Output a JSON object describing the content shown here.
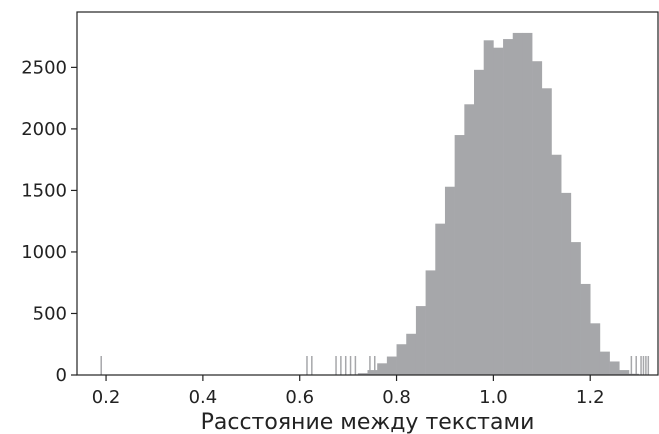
{
  "chart_data": {
    "type": "bar",
    "xlabel": "Расстояние между текстами",
    "ylabel": "",
    "xlim": [
      0.14,
      1.34
    ],
    "ylim": [
      0,
      2950
    ],
    "grid": false,
    "bar_color": "#a6a7aa",
    "rug_color": "#a6a7aa",
    "bin_width": 0.02,
    "x_ticks": [
      0.2,
      0.4,
      0.6,
      0.8,
      1.0,
      1.2
    ],
    "x_tick_labels": [
      "0.2",
      "0.4",
      "0.6",
      "0.8",
      "1.0",
      "1.2"
    ],
    "y_ticks": [
      0,
      500,
      1000,
      1500,
      2000,
      2500
    ],
    "y_tick_labels": [
      "0",
      "500",
      "1000",
      "1500",
      "2000",
      "2500"
    ],
    "bins": [
      {
        "x": 0.7,
        "value": 5
      },
      {
        "x": 0.72,
        "value": 15
      },
      {
        "x": 0.74,
        "value": 40
      },
      {
        "x": 0.76,
        "value": 95
      },
      {
        "x": 0.78,
        "value": 150
      },
      {
        "x": 0.8,
        "value": 250
      },
      {
        "x": 0.82,
        "value": 335
      },
      {
        "x": 0.84,
        "value": 560
      },
      {
        "x": 0.86,
        "value": 850
      },
      {
        "x": 0.88,
        "value": 1230
      },
      {
        "x": 0.9,
        "value": 1530
      },
      {
        "x": 0.92,
        "value": 1950
      },
      {
        "x": 0.94,
        "value": 2200
      },
      {
        "x": 0.96,
        "value": 2480
      },
      {
        "x": 0.98,
        "value": 2720
      },
      {
        "x": 1.0,
        "value": 2660
      },
      {
        "x": 1.02,
        "value": 2730
      },
      {
        "x": 1.04,
        "value": 2780
      },
      {
        "x": 1.06,
        "value": 2780
      },
      {
        "x": 1.08,
        "value": 2550
      },
      {
        "x": 1.1,
        "value": 2330
      },
      {
        "x": 1.12,
        "value": 1790
      },
      {
        "x": 1.14,
        "value": 1480
      },
      {
        "x": 1.16,
        "value": 1080
      },
      {
        "x": 1.18,
        "value": 740
      },
      {
        "x": 1.2,
        "value": 420
      },
      {
        "x": 1.22,
        "value": 190
      },
      {
        "x": 1.24,
        "value": 110
      },
      {
        "x": 1.26,
        "value": 40
      },
      {
        "x": 1.28,
        "value": 10
      }
    ],
    "rug": [
      0.19,
      0.615,
      0.625,
      0.675,
      0.685,
      0.695,
      0.705,
      0.715,
      0.745,
      0.755,
      1.285,
      1.295,
      1.305,
      1.31,
      1.315,
      1.32
    ]
  }
}
